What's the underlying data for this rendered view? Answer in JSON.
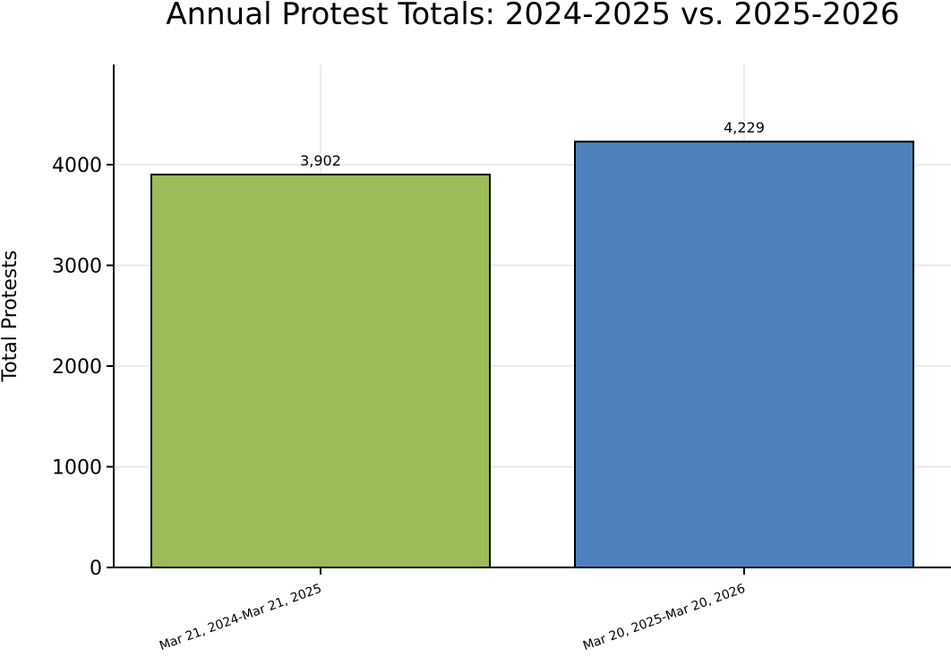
{
  "chart_data": {
    "type": "bar",
    "title": "Annual Protest Totals: 2024-2025 vs. 2025-2026",
    "xlabel": "",
    "ylabel": "Total Protests",
    "categories": [
      "Mar 21, 2024-Mar 21, 2025",
      "Mar 20, 2025-Mar 20, 2026"
    ],
    "values": [
      3902,
      4229
    ],
    "data_labels": [
      "3,902",
      "4,229"
    ],
    "colors": [
      "#9cbb59",
      "#4f81bd"
    ],
    "ylim": [
      0,
      5000
    ],
    "yticks": [
      0,
      1000,
      2000,
      3000,
      4000
    ],
    "ytick_labels": [
      "0",
      "1000",
      "2000",
      "3000",
      "4000"
    ],
    "grid": true,
    "legend": "none"
  }
}
